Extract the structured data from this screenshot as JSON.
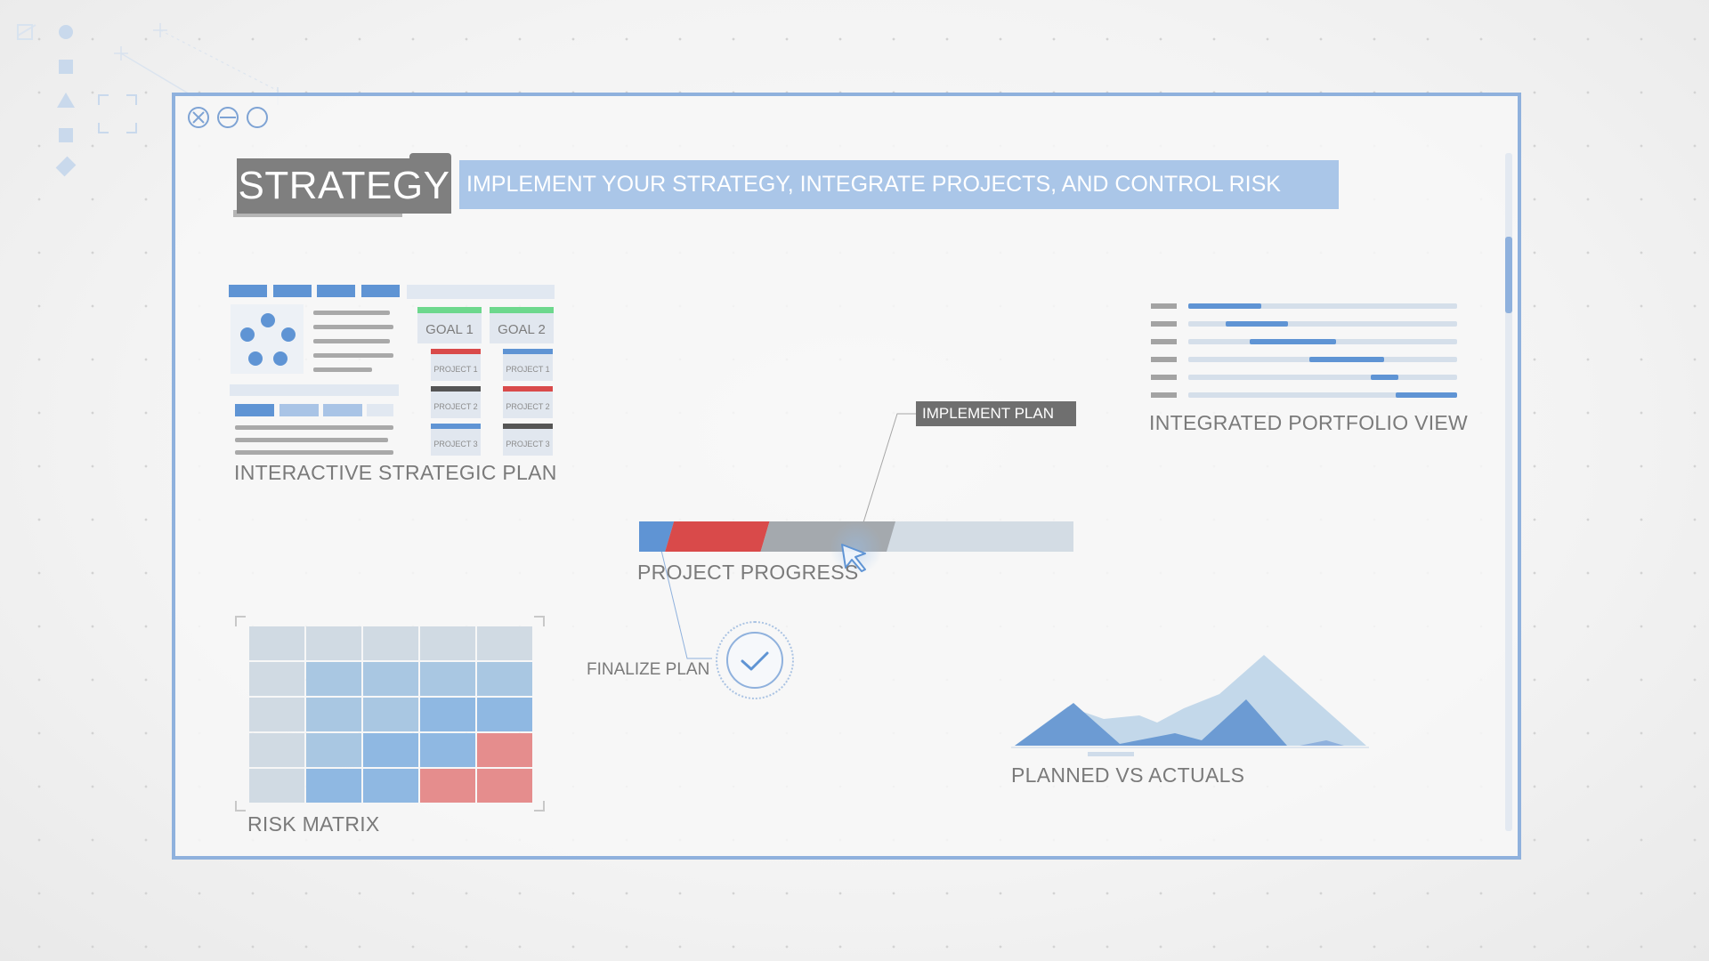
{
  "window": {
    "controls": [
      "close-icon",
      "minimize-icon",
      "maximize-icon"
    ]
  },
  "header": {
    "title": "STRATEGY",
    "subtitle": "IMPLEMENT YOUR STRATEGY, INTEGRATE PROJECTS, AND CONTROL RISK"
  },
  "strategic_plan": {
    "label": "INTERACTIVE STRATEGIC PLAN",
    "goals": [
      {
        "label": "GOAL 1",
        "projects": [
          {
            "label": "PROJECT 1",
            "color": "#d94a4a"
          },
          {
            "label": "PROJECT 2",
            "color": "#555555"
          },
          {
            "label": "PROJECT 3",
            "color": "#5f94d4"
          }
        ]
      },
      {
        "label": "GOAL 2",
        "projects": [
          {
            "label": "PROJECT 1",
            "color": "#5f94d4"
          },
          {
            "label": "PROJECT 2",
            "color": "#d94a4a"
          },
          {
            "label": "PROJECT 3",
            "color": "#555555"
          }
        ]
      }
    ]
  },
  "portfolio": {
    "label": "INTEGRATED PORTFOLIO VIEW",
    "bars": [
      {
        "start": 0.0,
        "end": 0.27
      },
      {
        "start": 0.14,
        "end": 0.37
      },
      {
        "start": 0.23,
        "end": 0.55
      },
      {
        "start": 0.45,
        "end": 0.73
      },
      {
        "start": 0.68,
        "end": 0.78
      },
      {
        "start": 0.77,
        "end": 1.0
      }
    ]
  },
  "progress": {
    "label": "PROJECT PROGRESS",
    "callout": "IMPLEMENT PLAN",
    "milestone": "FINALIZE PLAN",
    "segments": [
      {
        "fraction": 0.07,
        "color": "#5f94d4"
      },
      {
        "fraction": 0.22,
        "color": "#d94a4a"
      },
      {
        "fraction": 0.29,
        "color": "#a4a9ae"
      }
    ],
    "colors": {
      "track": "#d3dce4"
    }
  },
  "risk_matrix": {
    "label": "RISK MATRIX",
    "grid": [
      [
        "#d0dae3",
        "#d0dae3",
        "#d0dae3",
        "#d0dae3",
        "#d0dae3"
      ],
      [
        "#d0dae3",
        "#a9c7e2",
        "#a9c7e2",
        "#a9c7e2",
        "#a9c7e2"
      ],
      [
        "#d0dae3",
        "#a9c7e2",
        "#a9c7e2",
        "#8fb8e2",
        "#8fb8e2"
      ],
      [
        "#d0dae3",
        "#a9c7e2",
        "#8fb8e2",
        "#8fb8e2",
        "#e58d8d"
      ],
      [
        "#d0dae3",
        "#8fb8e2",
        "#8fb8e2",
        "#e58d8d",
        "#e58d8d"
      ]
    ]
  },
  "planned_actuals": {
    "label": "PLANNED VS ACTUALS"
  }
}
